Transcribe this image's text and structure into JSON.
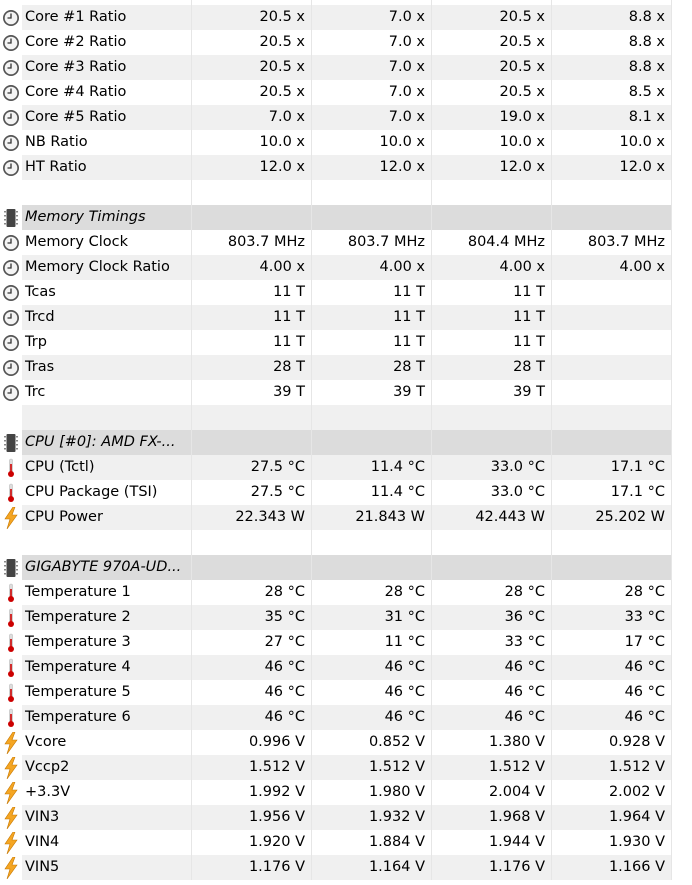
{
  "columns_count": 4,
  "colors": {
    "row_alt": "#f0f0f0",
    "section_header": "#dcdcdc",
    "thermometer": "#cc0000",
    "power": "#f5a623"
  },
  "rows": [
    {
      "type": "sensor",
      "icon": "clock-icon",
      "label": "Core #1 Ratio",
      "values": [
        "20.5 x",
        "7.0 x",
        "20.5 x",
        "8.8 x"
      ]
    },
    {
      "type": "sensor",
      "icon": "clock-icon",
      "label": "Core #2 Ratio",
      "values": [
        "20.5 x",
        "7.0 x",
        "20.5 x",
        "8.8 x"
      ]
    },
    {
      "type": "sensor",
      "icon": "clock-icon",
      "label": "Core #3 Ratio",
      "values": [
        "20.5 x",
        "7.0 x",
        "20.5 x",
        "8.8 x"
      ]
    },
    {
      "type": "sensor",
      "icon": "clock-icon",
      "label": "Core #4 Ratio",
      "values": [
        "20.5 x",
        "7.0 x",
        "20.5 x",
        "8.5 x"
      ]
    },
    {
      "type": "sensor",
      "icon": "clock-icon",
      "label": "Core #5 Ratio",
      "values": [
        "7.0 x",
        "7.0 x",
        "19.0 x",
        "8.1 x"
      ]
    },
    {
      "type": "sensor",
      "icon": "clock-icon",
      "label": "NB Ratio",
      "values": [
        "10.0 x",
        "10.0 x",
        "10.0 x",
        "10.0 x"
      ]
    },
    {
      "type": "sensor",
      "icon": "clock-icon",
      "label": "HT Ratio",
      "values": [
        "12.0 x",
        "12.0 x",
        "12.0 x",
        "12.0 x"
      ]
    },
    {
      "type": "blank"
    },
    {
      "type": "header",
      "icon": "chip-icon",
      "label": "Memory Timings"
    },
    {
      "type": "sensor",
      "icon": "clock-icon",
      "label": "Memory Clock",
      "values": [
        "803.7 MHz",
        "803.7 MHz",
        "804.4 MHz",
        "803.7 MHz"
      ]
    },
    {
      "type": "sensor",
      "icon": "clock-icon",
      "label": "Memory Clock Ratio",
      "values": [
        "4.00 x",
        "4.00 x",
        "4.00 x",
        "4.00 x"
      ]
    },
    {
      "type": "sensor",
      "icon": "clock-icon",
      "label": "Tcas",
      "values": [
        "11 T",
        "11 T",
        "11 T",
        ""
      ]
    },
    {
      "type": "sensor",
      "icon": "clock-icon",
      "label": "Trcd",
      "values": [
        "11 T",
        "11 T",
        "11 T",
        ""
      ]
    },
    {
      "type": "sensor",
      "icon": "clock-icon",
      "label": "Trp",
      "values": [
        "11 T",
        "11 T",
        "11 T",
        ""
      ]
    },
    {
      "type": "sensor",
      "icon": "clock-icon",
      "label": "Tras",
      "values": [
        "28 T",
        "28 T",
        "28 T",
        ""
      ]
    },
    {
      "type": "sensor",
      "icon": "clock-icon",
      "label": "Trc",
      "values": [
        "39 T",
        "39 T",
        "39 T",
        ""
      ]
    },
    {
      "type": "blank"
    },
    {
      "type": "header",
      "icon": "chip-icon",
      "label": "CPU [#0]: AMD FX-..."
    },
    {
      "type": "sensor",
      "icon": "thermometer-icon",
      "label": "CPU (Tctl)",
      "values": [
        "27.5 °C",
        "11.4 °C",
        "33.0 °C",
        "17.1 °C"
      ]
    },
    {
      "type": "sensor",
      "icon": "thermometer-icon",
      "label": "CPU Package (TSI)",
      "values": [
        "27.5 °C",
        "11.4 °C",
        "33.0 °C",
        "17.1 °C"
      ]
    },
    {
      "type": "sensor",
      "icon": "lightning-icon",
      "label": "CPU Power",
      "values": [
        "22.343 W",
        "21.843 W",
        "42.443 W",
        "25.202 W"
      ]
    },
    {
      "type": "blank"
    },
    {
      "type": "header",
      "icon": "chip-icon",
      "label": "GIGABYTE 970A-UD..."
    },
    {
      "type": "sensor",
      "icon": "thermometer-icon",
      "label": "Temperature 1",
      "values": [
        "28 °C",
        "28 °C",
        "28 °C",
        "28 °C"
      ]
    },
    {
      "type": "sensor",
      "icon": "thermometer-icon",
      "label": "Temperature 2",
      "values": [
        "35 °C",
        "31 °C",
        "36 °C",
        "33 °C"
      ]
    },
    {
      "type": "sensor",
      "icon": "thermometer-icon",
      "label": "Temperature 3",
      "values": [
        "27 °C",
        "11 °C",
        "33 °C",
        "17 °C"
      ]
    },
    {
      "type": "sensor",
      "icon": "thermometer-icon",
      "label": "Temperature 4",
      "values": [
        "46 °C",
        "46 °C",
        "46 °C",
        "46 °C"
      ]
    },
    {
      "type": "sensor",
      "icon": "thermometer-icon",
      "label": "Temperature 5",
      "values": [
        "46 °C",
        "46 °C",
        "46 °C",
        "46 °C"
      ]
    },
    {
      "type": "sensor",
      "icon": "thermometer-icon",
      "label": "Temperature 6",
      "values": [
        "46 °C",
        "46 °C",
        "46 °C",
        "46 °C"
      ]
    },
    {
      "type": "sensor",
      "icon": "lightning-icon",
      "label": "Vcore",
      "values": [
        "0.996 V",
        "0.852 V",
        "1.380 V",
        "0.928 V"
      ]
    },
    {
      "type": "sensor",
      "icon": "lightning-icon",
      "label": "Vccp2",
      "values": [
        "1.512 V",
        "1.512 V",
        "1.512 V",
        "1.512 V"
      ]
    },
    {
      "type": "sensor",
      "icon": "lightning-icon",
      "label": "+3.3V",
      "values": [
        "1.992 V",
        "1.980 V",
        "2.004 V",
        "2.002 V"
      ]
    },
    {
      "type": "sensor",
      "icon": "lightning-icon",
      "label": "VIN3",
      "values": [
        "1.956 V",
        "1.932 V",
        "1.968 V",
        "1.964 V"
      ]
    },
    {
      "type": "sensor",
      "icon": "lightning-icon",
      "label": "VIN4",
      "values": [
        "1.920 V",
        "1.884 V",
        "1.944 V",
        "1.930 V"
      ]
    },
    {
      "type": "sensor",
      "icon": "lightning-icon",
      "label": "VIN5",
      "values": [
        "1.176 V",
        "1.164 V",
        "1.176 V",
        "1.166 V"
      ]
    }
  ]
}
